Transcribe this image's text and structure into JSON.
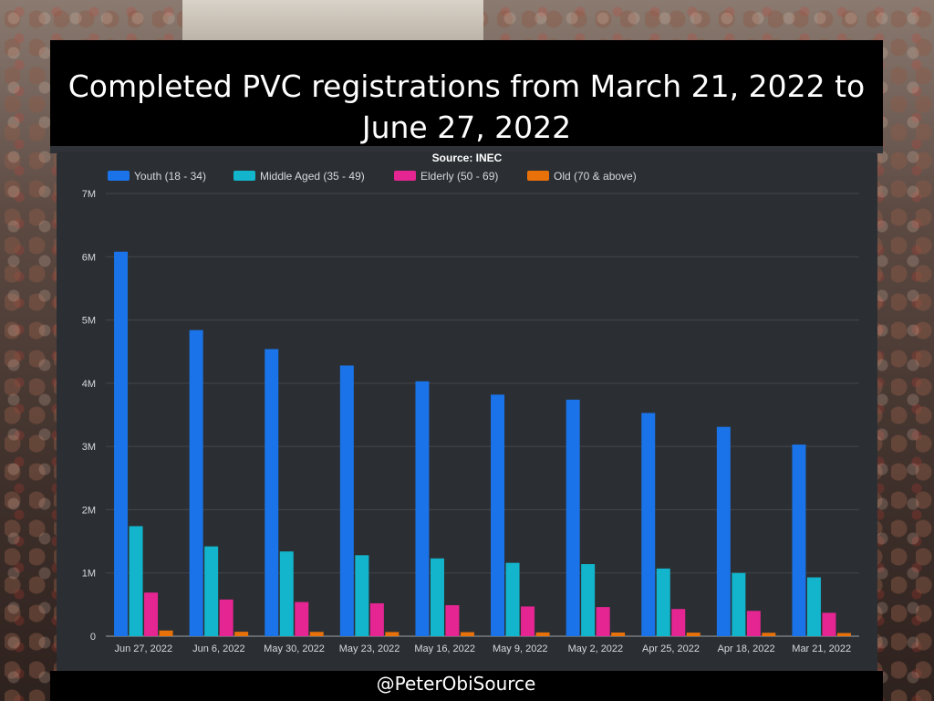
{
  "title": "Completed PVC registrations from March 21, 2022 to June 27, 2022",
  "footer": "@PeterObiSource",
  "chart_data": {
    "type": "bar",
    "subtitle": "Source: INEC",
    "categories": [
      "Jun 27, 2022",
      "Jun 6, 2022",
      "May 30, 2022",
      "May 23, 2022",
      "May 16, 2022",
      "May 9, 2022",
      "May 2, 2022",
      "Apr 25, 2022",
      "Apr 18, 2022",
      "Mar 21, 2022"
    ],
    "series": [
      {
        "name": "Youth (18 - 34)",
        "color": "#1a73e8",
        "values": [
          6080000,
          4840000,
          4540000,
          4280000,
          4030000,
          3820000,
          3740000,
          3530000,
          3310000,
          3030000
        ]
      },
      {
        "name": "Middle Aged (35 - 49)",
        "color": "#12b5cb",
        "values": [
          1740000,
          1420000,
          1340000,
          1280000,
          1230000,
          1160000,
          1140000,
          1070000,
          1000000,
          930000
        ]
      },
      {
        "name": "Elderly (50 - 69)",
        "color": "#e52592",
        "values": [
          690000,
          580000,
          540000,
          520000,
          490000,
          470000,
          460000,
          430000,
          400000,
          370000
        ]
      },
      {
        "name": "Old (70 & above)",
        "color": "#e8710a",
        "values": [
          90000,
          70000,
          68000,
          66000,
          64000,
          60000,
          58000,
          56000,
          54000,
          50000
        ]
      }
    ],
    "yticks": [
      {
        "value": 0,
        "label": "0"
      },
      {
        "value": 1000000,
        "label": "1M"
      },
      {
        "value": 2000000,
        "label": "2M"
      },
      {
        "value": 3000000,
        "label": "3M"
      },
      {
        "value": 4000000,
        "label": "4M"
      },
      {
        "value": 5000000,
        "label": "5M"
      },
      {
        "value": 6000000,
        "label": "6M"
      },
      {
        "value": 7000000,
        "label": "7M"
      }
    ],
    "ylim": [
      0,
      7000000
    ],
    "grid": true,
    "legend_position": "top-left"
  }
}
